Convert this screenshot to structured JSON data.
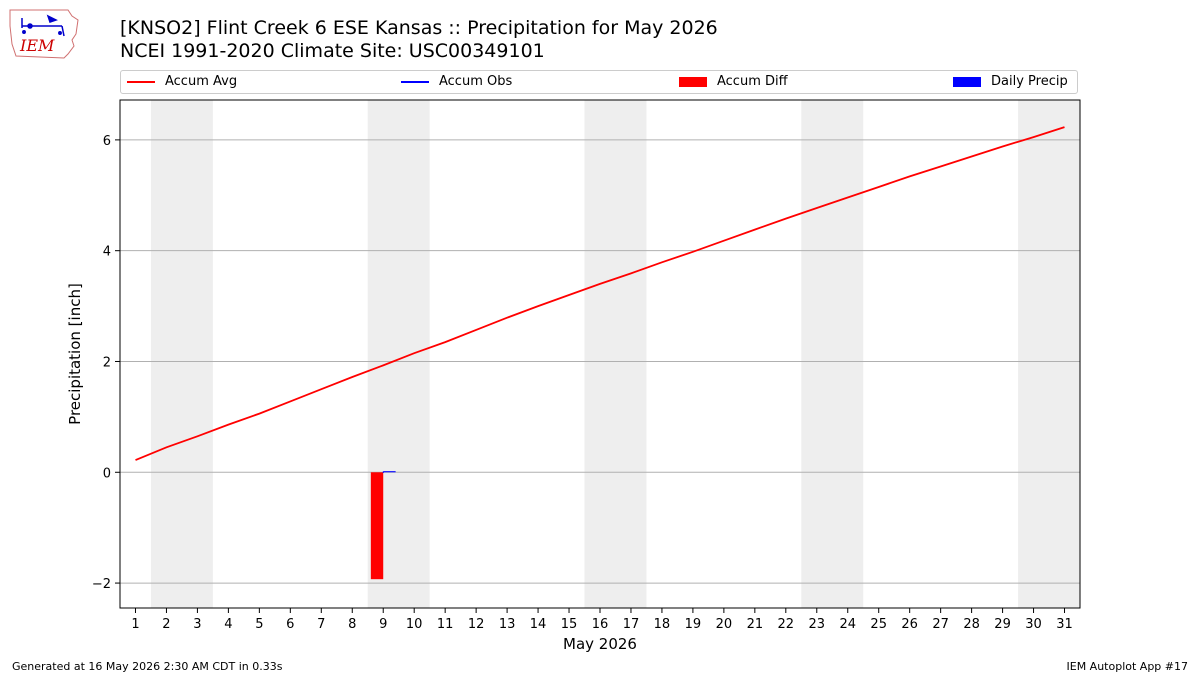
{
  "header": {
    "title_line1": "[KNSO2] Flint Creek 6 ESE Kansas :: Precipitation for May 2026",
    "title_line2": "NCEI 1991-2020 Climate Site: USC00349101"
  },
  "logo": {
    "text": "IEM"
  },
  "footer": {
    "generated": "Generated at 16 May 2026 2:30 AM CDT in 0.33s",
    "app": "IEM Autoplot App #17"
  },
  "legend": [
    {
      "label": "Accum Avg",
      "kind": "line",
      "color": "#ff0000"
    },
    {
      "label": "Accum Obs",
      "kind": "line",
      "color": "#0000ff"
    },
    {
      "label": "Accum Diff",
      "kind": "box",
      "color": "#ff0000"
    },
    {
      "label": "Daily Precip",
      "kind": "box",
      "color": "#0000ff"
    }
  ],
  "chart_data": {
    "type": "line",
    "xlabel": "May 2026",
    "ylabel": "Precipitation [inch]",
    "xlim": [
      0.5,
      31.5
    ],
    "ylim": [
      -2.45,
      6.72
    ],
    "x_ticks": [
      1,
      2,
      3,
      4,
      5,
      6,
      7,
      8,
      9,
      10,
      11,
      12,
      13,
      14,
      15,
      16,
      17,
      18,
      19,
      20,
      21,
      22,
      23,
      24,
      25,
      26,
      27,
      28,
      29,
      30,
      31
    ],
    "y_ticks": [
      -2,
      0,
      2,
      4,
      6
    ],
    "y_tick_labels": [
      "−2",
      "0",
      "2",
      "4",
      "6"
    ],
    "grid": "horizontal",
    "weekend_bands": [
      [
        1.5,
        3.5
      ],
      [
        8.5,
        10.5
      ],
      [
        15.5,
        17.5
      ],
      [
        22.5,
        24.5
      ],
      [
        29.5,
        31.5
      ]
    ],
    "band_color": "#eeeeee",
    "accum_avg": {
      "color": "#ff0000",
      "x": [
        1,
        2,
        3,
        4,
        5,
        6,
        7,
        8,
        9,
        10,
        11,
        12,
        13,
        14,
        15,
        16,
        17,
        18,
        19,
        20,
        21,
        22,
        23,
        24,
        25,
        26,
        27,
        28,
        29,
        30,
        31
      ],
      "values": [
        0.22,
        0.45,
        0.65,
        0.86,
        1.06,
        1.28,
        1.5,
        1.72,
        1.93,
        2.15,
        2.35,
        2.57,
        2.79,
        3.0,
        3.2,
        3.4,
        3.59,
        3.79,
        3.98,
        4.18,
        4.38,
        4.58,
        4.77,
        4.96,
        5.15,
        5.34,
        5.52,
        5.7,
        5.88,
        6.05,
        6.23
      ]
    },
    "accum_obs": {
      "color": "#0000ff",
      "x": [
        9
      ],
      "values": [
        0.0
      ]
    },
    "accum_diff": {
      "color": "#ff0000",
      "x": [
        8.8
      ],
      "values": [
        -1.93
      ]
    },
    "daily_precip": {
      "color": "#0000ff",
      "x": [
        9.2
      ],
      "values": [
        0.02
      ]
    }
  }
}
